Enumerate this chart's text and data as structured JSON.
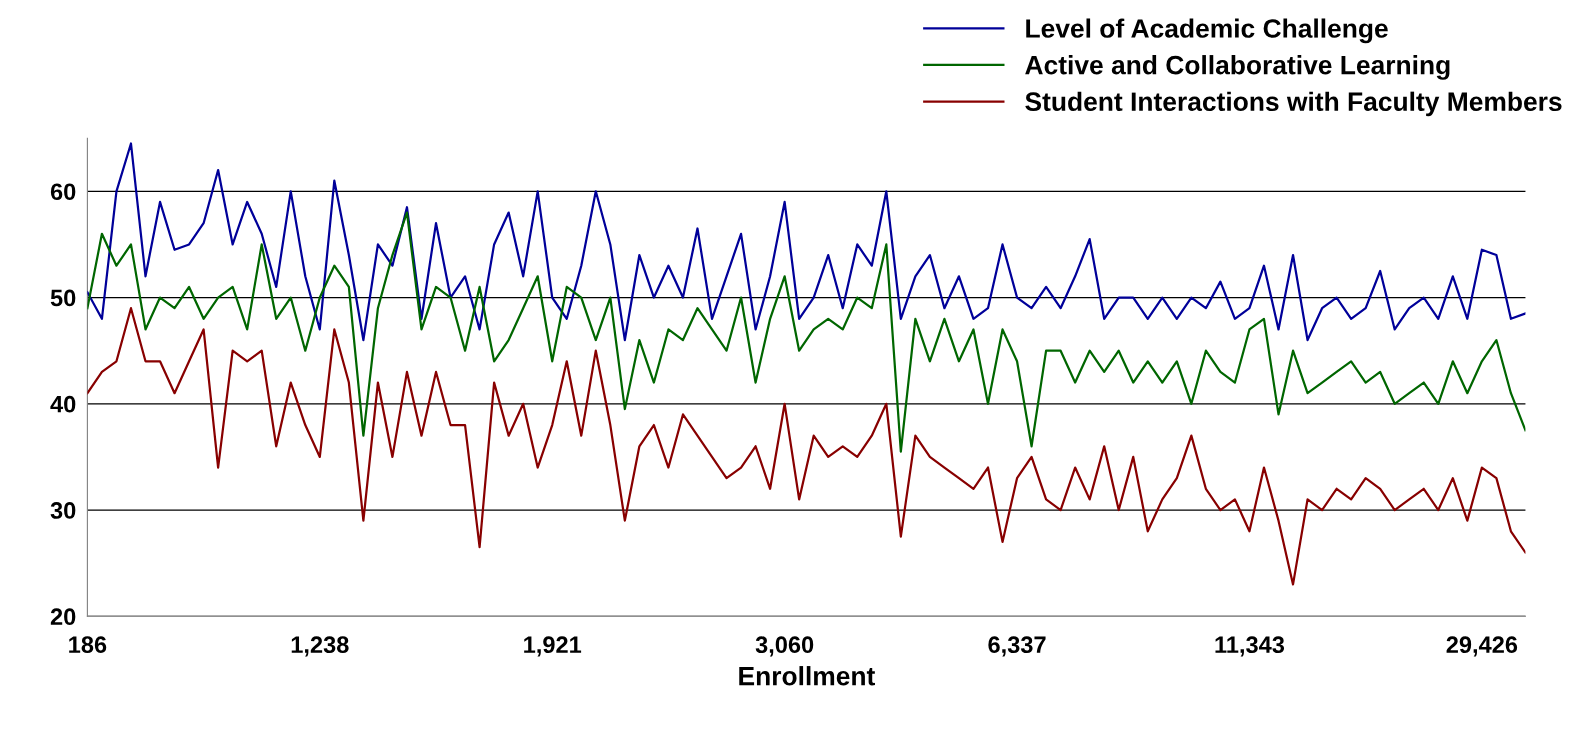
{
  "chart_data": {
    "type": "line",
    "xlabel": "Enrollment",
    "categories": [
      "186",
      null,
      null,
      null,
      null,
      null,
      null,
      null,
      null,
      null,
      null,
      null,
      null,
      null,
      null,
      null,
      "1,238",
      null,
      null,
      null,
      null,
      null,
      null,
      null,
      null,
      null,
      null,
      null,
      null,
      null,
      null,
      null,
      "1,921",
      null,
      null,
      null,
      null,
      null,
      null,
      null,
      null,
      null,
      null,
      null,
      null,
      null,
      null,
      null,
      "3,060",
      null,
      null,
      null,
      null,
      null,
      null,
      null,
      null,
      null,
      null,
      null,
      null,
      null,
      null,
      null,
      "6,337",
      null,
      null,
      null,
      null,
      null,
      null,
      null,
      null,
      null,
      null,
      null,
      null,
      null,
      null,
      null,
      "11,343",
      null,
      null,
      null,
      null,
      null,
      null,
      null,
      null,
      null,
      null,
      null,
      null,
      null,
      null,
      null,
      "29,426",
      null,
      null,
      null
    ],
    "series": [
      {
        "name": "Level of Academic Challenge",
        "color": "#000099",
        "values": [
          50.5,
          48,
          60,
          64.5,
          52,
          59,
          54.5,
          55,
          57,
          62,
          55,
          59,
          56,
          51,
          60,
          52,
          47,
          61,
          54,
          46,
          55,
          53,
          58.5,
          48,
          57,
          50,
          52,
          47,
          55,
          58,
          52,
          60,
          50,
          48,
          53,
          60,
          55,
          46,
          54,
          50,
          53,
          50,
          56.5,
          48,
          52,
          56,
          47,
          52,
          59,
          48,
          50,
          54,
          49,
          55,
          53,
          60,
          48,
          52,
          54,
          49,
          52,
          48,
          49,
          55,
          50,
          49,
          51,
          49,
          52,
          55.5,
          48,
          50,
          50,
          48,
          50,
          48,
          50,
          49,
          51.5,
          48,
          49,
          53,
          47,
          54,
          46,
          49,
          50,
          48,
          49,
          52.5,
          47,
          49,
          50,
          48,
          52,
          48,
          54.5,
          54,
          48,
          48.5
        ]
      },
      {
        "name": "Active and Collaborative Learning",
        "color": "#006600",
        "values": [
          49,
          56,
          53,
          55,
          47,
          50,
          49,
          51,
          48,
          50,
          51,
          47,
          55,
          48,
          50,
          45,
          50,
          53,
          51,
          37,
          49,
          54,
          58,
          47,
          51,
          50,
          45,
          51,
          44,
          46,
          49,
          52,
          44,
          51,
          50,
          46,
          50,
          39.5,
          46,
          42,
          47,
          46,
          49,
          47,
          45,
          50,
          42,
          48,
          52,
          45,
          47,
          48,
          47,
          50,
          49,
          55,
          35.5,
          48,
          44,
          48,
          44,
          47,
          40,
          47,
          44,
          36,
          45,
          45,
          42,
          45,
          43,
          45,
          42,
          44,
          42,
          44,
          40,
          45,
          43,
          42,
          47,
          48,
          39,
          45,
          41,
          42,
          43,
          44,
          42,
          43,
          40,
          41,
          42,
          40,
          44,
          41,
          44,
          46,
          41,
          37.5
        ]
      },
      {
        "name": "Student Interactions with Faculty Members",
        "color": "#880000",
        "values": [
          41,
          43,
          44,
          49,
          44,
          44,
          41,
          44,
          47,
          34,
          45,
          44,
          45,
          36,
          42,
          38,
          35,
          47,
          42,
          29,
          42,
          35,
          43,
          37,
          43,
          38,
          38,
          26.5,
          42,
          37,
          40,
          34,
          38,
          44,
          37,
          45,
          38,
          29,
          36,
          38,
          34,
          39,
          37,
          35,
          33,
          34,
          36,
          32,
          40,
          31,
          37,
          35,
          36,
          35,
          37,
          40,
          27.5,
          37,
          35,
          34,
          33,
          32,
          34,
          27,
          33,
          35,
          31,
          30,
          34,
          31,
          36,
          30,
          35,
          28,
          31,
          33,
          37,
          32,
          30,
          31,
          28,
          34,
          29,
          23,
          31,
          30,
          32,
          31,
          33,
          32,
          30,
          31,
          32,
          30,
          33,
          29,
          34,
          33,
          28,
          26
        ]
      }
    ],
    "ylim": [
      20,
      65
    ],
    "yticks": [
      20,
      30,
      40,
      50,
      60
    ],
    "grid": "y",
    "legend": "top right",
    "marker": "none",
    "line_style": "solid"
  }
}
